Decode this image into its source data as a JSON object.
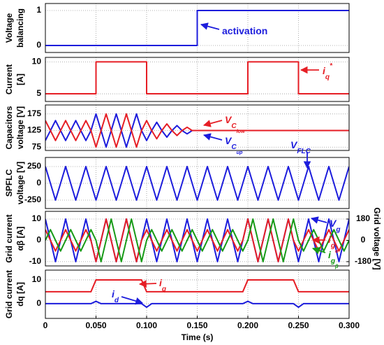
{
  "chart_data": [
    {
      "type": "line",
      "ylabel": [
        "Voltage",
        "balancing"
      ],
      "grid": true,
      "xlim": [
        0,
        0.3
      ],
      "xticks": [
        0,
        0.05,
        0.1,
        0.15,
        0.2,
        0.25,
        0.3
      ],
      "ylim": [
        -0.2,
        1.2
      ],
      "yticks": [
        0,
        1
      ],
      "x": [
        0,
        0.15,
        0.15,
        0.3
      ],
      "series": [
        {
          "color": "#1c1cdc",
          "values": [
            0,
            0,
            1,
            1
          ]
        }
      ],
      "annotations": [
        {
          "text": "activation",
          "color": "#1c1cdc"
        }
      ]
    },
    {
      "type": "line",
      "ylabel": [
        "Current",
        "[A]"
      ],
      "grid": true,
      "xlim": [
        0,
        0.3
      ],
      "xticks": [
        0,
        0.05,
        0.1,
        0.15,
        0.2,
        0.25,
        0.3
      ],
      "ylim": [
        3.8,
        10.7
      ],
      "yticks": [
        5,
        10
      ],
      "x": [
        0,
        0.05,
        0.05,
        0.1,
        0.1,
        0.2,
        0.2,
        0.25,
        0.25,
        0.3
      ],
      "series": [
        {
          "color": "#e61e25",
          "values": [
            5,
            5,
            10,
            10,
            5,
            5,
            10,
            10,
            5,
            5
          ]
        }
      ],
      "annotations": [
        {
          "text": "i",
          "sub": {
            "text": "q"
          },
          "sup": {
            "text": "*"
          },
          "color": "#e61e25"
        }
      ]
    },
    {
      "type": "line",
      "ylabel": [
        "Capacitors",
        "voltage [V]"
      ],
      "grid": true,
      "xlim": [
        0,
        0.3
      ],
      "xticks": [
        0,
        0.05,
        0.1,
        0.15,
        0.2,
        0.25,
        0.3
      ],
      "ylim": [
        65,
        202
      ],
      "yticks": [
        75,
        125,
        175
      ],
      "x": [
        0,
        0.005,
        0.01,
        0.015,
        0.02,
        0.025,
        0.03,
        0.035,
        0.04,
        0.045,
        0.05,
        0.055,
        0.06,
        0.065,
        0.07,
        0.075,
        0.08,
        0.085,
        0.09,
        0.095,
        0.1,
        0.105,
        0.11,
        0.115,
        0.12,
        0.125,
        0.13,
        0.135,
        0.14,
        0.145,
        0.15,
        0.155,
        0.16,
        0.165,
        0.17,
        0.175,
        0.18,
        0.185,
        0.19,
        0.195,
        0.2,
        0.205,
        0.21,
        0.215,
        0.22,
        0.225,
        0.23,
        0.235,
        0.24,
        0.245,
        0.25,
        0.255,
        0.26,
        0.265,
        0.27,
        0.275,
        0.28,
        0.285,
        0.29,
        0.295,
        0.3
      ],
      "series": [
        {
          "color": "#1c1cdc",
          "values": [
            95,
            125,
            155,
            125,
            95,
            125,
            155,
            125,
            95,
            125,
            175,
            125,
            75,
            125,
            175,
            125,
            75,
            125,
            175,
            125,
            95,
            125,
            150,
            125,
            105,
            125,
            140,
            125,
            115,
            125,
            125,
            125,
            125,
            125,
            125,
            125,
            125,
            125,
            125,
            125,
            125,
            125,
            125,
            125,
            125,
            125,
            125,
            125,
            125,
            125,
            125,
            125,
            125,
            125,
            125,
            125,
            125,
            125,
            125,
            125,
            125
          ]
        },
        {
          "color": "#e61e25",
          "values": [
            155,
            125,
            95,
            125,
            155,
            125,
            95,
            125,
            155,
            125,
            75,
            125,
            175,
            125,
            75,
            125,
            175,
            125,
            75,
            125,
            155,
            125,
            100,
            125,
            145,
            125,
            110,
            125,
            135,
            125,
            125,
            125,
            125,
            125,
            125,
            125,
            125,
            125,
            125,
            125,
            125,
            125,
            125,
            125,
            125,
            125,
            125,
            125,
            125,
            125,
            125,
            125,
            125,
            125,
            125,
            125,
            125,
            125,
            125,
            125,
            125
          ]
        }
      ],
      "annotations": [
        {
          "text": "V",
          "sub": {
            "text": "C",
            "sub": {
              "text": "low"
            }
          },
          "color": "#e61e25"
        },
        {
          "text": "V",
          "sub": {
            "text": "C",
            "sub": {
              "text": "up"
            }
          },
          "color": "#1c1cdc"
        }
      ]
    },
    {
      "type": "line",
      "ylabel": [
        "SPFLC",
        "voltage [V]"
      ],
      "grid": true,
      "xlim": [
        0,
        0.3
      ],
      "xticks": [
        0,
        0.05,
        0.1,
        0.15,
        0.2,
        0.25,
        0.3
      ],
      "ylim": [
        -375,
        385
      ],
      "yticks": [
        -250,
        0,
        250
      ],
      "x": [
        0,
        0.005,
        0.01,
        0.015,
        0.02,
        0.025,
        0.03,
        0.035,
        0.04,
        0.045,
        0.05,
        0.055,
        0.06,
        0.065,
        0.07,
        0.075,
        0.08,
        0.085,
        0.09,
        0.095,
        0.1,
        0.105,
        0.11,
        0.115,
        0.12,
        0.125,
        0.13,
        0.135,
        0.14,
        0.145,
        0.15,
        0.155,
        0.16,
        0.165,
        0.17,
        0.175,
        0.18,
        0.185,
        0.19,
        0.195,
        0.2,
        0.205,
        0.21,
        0.215,
        0.22,
        0.225,
        0.23,
        0.235,
        0.24,
        0.245,
        0.25,
        0.255,
        0.26,
        0.265,
        0.27,
        0.275,
        0.28,
        0.285,
        0.29,
        0.295,
        0.3
      ],
      "series": [
        {
          "color": "#1c1cdc",
          "values": [
            250,
            0,
            -250,
            0,
            250,
            0,
            -250,
            0,
            250,
            0,
            -250,
            0,
            250,
            0,
            -250,
            0,
            250,
            0,
            -250,
            0,
            250,
            0,
            -250,
            0,
            250,
            0,
            -250,
            0,
            250,
            0,
            -250,
            0,
            250,
            0,
            -250,
            0,
            250,
            0,
            -250,
            0,
            250,
            0,
            -250,
            0,
            250,
            0,
            -250,
            0,
            250,
            0,
            -250,
            0,
            250,
            0,
            -250,
            0,
            250,
            0,
            -250,
            0,
            250
          ]
        }
      ],
      "annotations": [
        {
          "text": "V",
          "sub": {
            "text": "FLC"
          },
          "color": "#1c1cdc"
        }
      ]
    },
    {
      "type": "line",
      "ylabel": [
        "Grid current",
        "αβ [A]"
      ],
      "y2label": "Grid voltage [V]",
      "grid": true,
      "xlim": [
        0,
        0.3
      ],
      "xticks": [
        0,
        0.05,
        0.1,
        0.15,
        0.2,
        0.25,
        0.3
      ],
      "ylim": [
        -12,
        13.6
      ],
      "yticks": [
        -10,
        0,
        10
      ],
      "y2lim": [
        -216,
        245
      ],
      "y2ticks": [
        -180,
        0,
        180
      ],
      "x": [
        0,
        0.005,
        0.01,
        0.015,
        0.02,
        0.025,
        0.03,
        0.035,
        0.04,
        0.045,
        0.05,
        0.055,
        0.06,
        0.065,
        0.07,
        0.075,
        0.08,
        0.085,
        0.09,
        0.095,
        0.1,
        0.105,
        0.11,
        0.115,
        0.12,
        0.125,
        0.13,
        0.135,
        0.14,
        0.145,
        0.15,
        0.155,
        0.16,
        0.165,
        0.17,
        0.175,
        0.18,
        0.185,
        0.19,
        0.195,
        0.2,
        0.205,
        0.21,
        0.215,
        0.22,
        0.225,
        0.23,
        0.235,
        0.24,
        0.245,
        0.25,
        0.255,
        0.26,
        0.265,
        0.27,
        0.275,
        0.28,
        0.285,
        0.29,
        0.295,
        0.3
      ],
      "series": [
        {
          "color": "#1c1cdc",
          "axis": "y2",
          "values": [
            180,
            0,
            -180,
            0,
            180,
            0,
            -180,
            0,
            180,
            0,
            -180,
            0,
            180,
            0,
            -180,
            0,
            180,
            0,
            -180,
            0,
            180,
            0,
            -180,
            0,
            180,
            0,
            -180,
            0,
            180,
            0,
            -180,
            0,
            180,
            0,
            -180,
            0,
            180,
            0,
            -180,
            0,
            180,
            0,
            -180,
            0,
            180,
            0,
            -180,
            0,
            180,
            0,
            -180,
            0,
            180,
            0,
            -180,
            0,
            180,
            0,
            -180,
            0,
            180
          ]
        },
        {
          "color": "#e61e25",
          "values": [
            5,
            0,
            -5,
            0,
            5,
            0,
            -5,
            0,
            5,
            0,
            -10,
            0,
            10,
            0,
            -10,
            0,
            10,
            0,
            -10,
            0,
            5,
            0,
            -5,
            0,
            5,
            0,
            -5,
            0,
            5,
            0,
            -5,
            0,
            5,
            0,
            -5,
            0,
            5,
            0,
            -5,
            0,
            10,
            0,
            -10,
            0,
            10,
            0,
            -10,
            0,
            10,
            0,
            -5,
            0,
            5,
            0,
            -5,
            0,
            5,
            0,
            -5,
            0,
            5
          ]
        },
        {
          "color": "#169a16",
          "values": [
            0,
            5,
            0,
            -5,
            0,
            5,
            0,
            -5,
            0,
            5,
            0,
            -10,
            0,
            10,
            0,
            -10,
            0,
            10,
            0,
            -10,
            0,
            5,
            0,
            -5,
            0,
            5,
            0,
            -5,
            0,
            5,
            0,
            -5,
            0,
            5,
            0,
            -5,
            0,
            5,
            0,
            -5,
            0,
            10,
            0,
            -10,
            0,
            10,
            0,
            -10,
            0,
            10,
            0,
            -5,
            0,
            5,
            0,
            -5,
            0,
            5,
            0,
            -5,
            0
          ]
        }
      ],
      "annotations": [
        {
          "text": "V",
          "sub": {
            "text": "g"
          },
          "color": "#1c1cdc"
        },
        {
          "text": "i",
          "sub": {
            "text": "g",
            "sub": {
              "text": "α"
            }
          },
          "color": "#e61e25"
        },
        {
          "text": "i",
          "sub": {
            "text": "g",
            "sub": {
              "text": "β"
            }
          },
          "color": "#169a16"
        }
      ]
    },
    {
      "type": "line",
      "ylabel": [
        "Grid current",
        "dq [A]"
      ],
      "xlabel": "Time (s)",
      "grid": true,
      "xlim": [
        0,
        0.3
      ],
      "xticks": [
        0,
        {
          "value": 0.05,
          "label": "0.050"
        },
        {
          "value": 0.1,
          "label": "0.100"
        },
        {
          "value": 0.15,
          "label": "0.150"
        },
        {
          "value": 0.2,
          "label": "0.200"
        },
        {
          "value": 0.25,
          "label": "0.250"
        },
        {
          "value": 0.3,
          "label": "0.300"
        }
      ],
      "ylim": [
        -6.2,
        14.1
      ],
      "yticks": [
        0,
        10
      ],
      "x": [
        0,
        0.005,
        0.01,
        0.015,
        0.02,
        0.025,
        0.03,
        0.035,
        0.04,
        0.045,
        0.05,
        0.055,
        0.06,
        0.065,
        0.07,
        0.075,
        0.08,
        0.085,
        0.09,
        0.095,
        0.1,
        0.105,
        0.11,
        0.115,
        0.12,
        0.125,
        0.13,
        0.135,
        0.14,
        0.145,
        0.15,
        0.155,
        0.16,
        0.165,
        0.17,
        0.175,
        0.18,
        0.185,
        0.19,
        0.195,
        0.2,
        0.205,
        0.21,
        0.215,
        0.22,
        0.225,
        0.23,
        0.235,
        0.24,
        0.245,
        0.25,
        0.255,
        0.26,
        0.265,
        0.27,
        0.275,
        0.28,
        0.285,
        0.29,
        0.295,
        0.3
      ],
      "series": [
        {
          "color": "#e61e25",
          "values": [
            5,
            5,
            5,
            5,
            5,
            5,
            5,
            5,
            5,
            5,
            10,
            10,
            10,
            10,
            10,
            10,
            10,
            10,
            10,
            10,
            5,
            5,
            5,
            5,
            5,
            5,
            5,
            5,
            5,
            5,
            5,
            5,
            5,
            5,
            5,
            5,
            5,
            5,
            5,
            5,
            10,
            10,
            10,
            10,
            10,
            10,
            10,
            10,
            10,
            10,
            5,
            5,
            5,
            5,
            5,
            5,
            5,
            5,
            5,
            5,
            5
          ]
        },
        {
          "color": "#1c1cdc",
          "values": [
            0,
            0,
            0,
            0,
            0,
            0,
            0,
            0,
            0,
            0,
            1,
            0,
            0,
            0,
            0,
            0,
            0,
            0,
            0,
            0,
            -1.5,
            0,
            0,
            0,
            0,
            0,
            0,
            0,
            0,
            0,
            0,
            0,
            0,
            0,
            0,
            0,
            0,
            0,
            0,
            0,
            1,
            0,
            0,
            0,
            0,
            0,
            0,
            0,
            0,
            0,
            -1.5,
            0,
            0,
            0,
            0,
            0,
            0,
            0,
            0,
            0,
            0
          ]
        }
      ],
      "annotations": [
        {
          "text": "i",
          "sub": {
            "text": "q"
          },
          "color": "#e61e25"
        },
        {
          "text": "i",
          "sub": {
            "text": "d"
          },
          "color": "#1c1cdc"
        }
      ]
    }
  ]
}
